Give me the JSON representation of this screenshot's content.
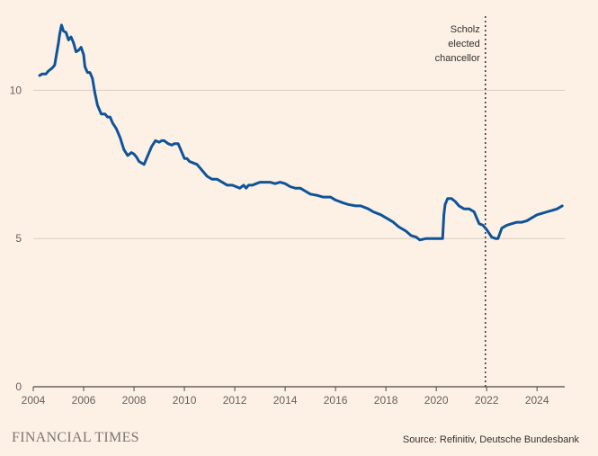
{
  "chart_data": {
    "type": "line",
    "title": "",
    "xlabel": "",
    "ylabel": "",
    "xlim": [
      2004,
      2025.1
    ],
    "ylim": [
      0,
      12.5
    ],
    "x_ticks": [
      2004,
      2006,
      2008,
      2010,
      2012,
      2014,
      2016,
      2018,
      2020,
      2022,
      2024
    ],
    "x_tick_labels": [
      "2004",
      "2006",
      "2008",
      "2010",
      "2012",
      "2014",
      "2016",
      "2018",
      "2020",
      "2022",
      "2024"
    ],
    "y_ticks": [
      0,
      5,
      10
    ],
    "y_tick_labels": [
      "0",
      "5",
      "10"
    ],
    "grid": true,
    "series": [
      {
        "color": "#0f5499",
        "x": [
          2004.25,
          2004.35,
          2004.5,
          2004.6,
          2004.75,
          2004.85,
          2005.0,
          2005.05,
          2005.12,
          2005.2,
          2005.3,
          2005.4,
          2005.5,
          2005.6,
          2005.7,
          2005.8,
          2005.9,
          2006.0,
          2006.05,
          2006.15,
          2006.25,
          2006.35,
          2006.45,
          2006.55,
          2006.7,
          2006.85,
          2006.95,
          2007.05,
          2007.15,
          2007.3,
          2007.45,
          2007.6,
          2007.75,
          2007.9,
          2008.0,
          2008.1,
          2008.2,
          2008.3,
          2008.4,
          2008.5,
          2008.6,
          2008.7,
          2008.85,
          2009.0,
          2009.1,
          2009.2,
          2009.35,
          2009.5,
          2009.6,
          2009.75,
          2009.9,
          2010.0,
          2010.1,
          2010.2,
          2010.35,
          2010.5,
          2010.7,
          2010.9,
          2011.1,
          2011.3,
          2011.5,
          2011.7,
          2011.9,
          2012.05,
          2012.2,
          2012.35,
          2012.45,
          2012.55,
          2012.7,
          2012.85,
          2013.0,
          2013.2,
          2013.4,
          2013.6,
          2013.8,
          2014.0,
          2014.2,
          2014.4,
          2014.6,
          2014.8,
          2015.0,
          2015.3,
          2015.5,
          2015.8,
          2016.0,
          2016.3,
          2016.5,
          2016.8,
          2017.0,
          2017.3,
          2017.5,
          2017.8,
          2018.0,
          2018.3,
          2018.5,
          2018.8,
          2019.0,
          2019.2,
          2019.35,
          2019.6,
          2019.8,
          2020.0,
          2020.15,
          2020.25,
          2020.3,
          2020.35,
          2020.45,
          2020.6,
          2020.75,
          2020.9,
          2021.1,
          2021.3,
          2021.5,
          2021.7,
          2021.85,
          2022.0,
          2022.2,
          2022.35,
          2022.45,
          2022.6,
          2022.8,
          2023.0,
          2023.2,
          2023.4,
          2023.6,
          2023.8,
          2024.0,
          2024.2,
          2024.4,
          2024.6,
          2024.8,
          2025.0
        ],
        "values": [
          10.5,
          10.55,
          10.55,
          10.65,
          10.75,
          10.85,
          11.6,
          11.9,
          12.2,
          12.0,
          11.95,
          11.7,
          11.8,
          11.6,
          11.3,
          11.35,
          11.45,
          11.2,
          10.8,
          10.6,
          10.6,
          10.4,
          9.9,
          9.5,
          9.2,
          9.2,
          9.1,
          9.1,
          8.9,
          8.7,
          8.4,
          8.0,
          7.8,
          7.9,
          7.85,
          7.75,
          7.6,
          7.55,
          7.5,
          7.7,
          7.9,
          8.1,
          8.3,
          8.25,
          8.3,
          8.3,
          8.2,
          8.15,
          8.2,
          8.2,
          7.9,
          7.7,
          7.7,
          7.6,
          7.55,
          7.5,
          7.3,
          7.1,
          7.0,
          7.0,
          6.9,
          6.8,
          6.8,
          6.75,
          6.7,
          6.8,
          6.7,
          6.8,
          6.8,
          6.85,
          6.9,
          6.9,
          6.9,
          6.85,
          6.9,
          6.85,
          6.75,
          6.7,
          6.7,
          6.6,
          6.5,
          6.45,
          6.4,
          6.4,
          6.3,
          6.2,
          6.15,
          6.1,
          6.1,
          6.0,
          5.9,
          5.8,
          5.7,
          5.55,
          5.4,
          5.25,
          5.1,
          5.05,
          4.95,
          5.0,
          5.0,
          5.0,
          5.0,
          5.0,
          5.8,
          6.15,
          6.35,
          6.35,
          6.25,
          6.1,
          6.0,
          6.0,
          5.9,
          5.5,
          5.45,
          5.3,
          5.05,
          5.0,
          5.0,
          5.35,
          5.45,
          5.5,
          5.55,
          5.55,
          5.6,
          5.7,
          5.8,
          5.85,
          5.9,
          5.95,
          6.0,
          6.1
        ]
      }
    ],
    "events": [
      {
        "x": 2021.95,
        "label_lines": [
          "Scholz",
          "elected",
          "chancellor"
        ]
      }
    ]
  },
  "footer": {
    "brand": "FINANCIAL TIMES",
    "source": "Source: Refinitiv, Deutsche Bundesbank"
  }
}
